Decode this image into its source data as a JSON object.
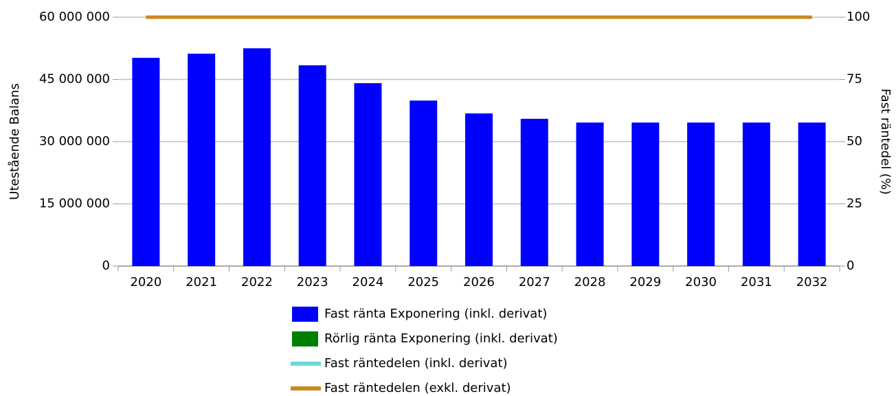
{
  "chart_data": {
    "type": "bar",
    "categories": [
      "2020",
      "2021",
      "2022",
      "2023",
      "2024",
      "2025",
      "2026",
      "2027",
      "2028",
      "2029",
      "2030",
      "2031",
      "2032"
    ],
    "y_label": "Utestående Balans",
    "y2_label": "Fast räntedel (%)",
    "ylim": [
      0,
      60000000
    ],
    "yticks": [
      {
        "value": 0,
        "label": "0"
      },
      {
        "value": 15000000,
        "label": "15 000 000"
      },
      {
        "value": 30000000,
        "label": "30 000 000"
      },
      {
        "value": 45000000,
        "label": "45 000 000"
      },
      {
        "value": 60000000,
        "label": "60 000 000"
      }
    ],
    "y2lim": [
      0,
      100
    ],
    "y2ticks": [
      0,
      25,
      50,
      75,
      100
    ],
    "grid": true,
    "series": [
      {
        "name": "Fast ränta Exponering (inkl. derivat)",
        "color": "#0000ff",
        "kind": "bar",
        "values": [
          50200000,
          51200000,
          52500000,
          48400000,
          44100000,
          39900000,
          36800000,
          35500000,
          34600000,
          34600000,
          34600000,
          34600000,
          34600000
        ]
      },
      {
        "name": "Rörlig ränta Exponering (inkl. derivat)",
        "color": "#008000",
        "kind": "bar",
        "values": [
          0,
          0,
          0,
          0,
          0,
          0,
          0,
          0,
          0,
          0,
          0,
          0,
          0
        ]
      },
      {
        "name": "Fast räntedelen (inkl. derivat)",
        "color": "#6ed8d8",
        "kind": "line",
        "axis": "y2",
        "values": [
          100,
          100,
          100,
          100,
          100,
          100,
          100,
          100,
          100,
          100,
          100,
          100,
          100
        ]
      },
      {
        "name": "Fast räntedelen (exkl. derivat)",
        "color": "#c8891e",
        "kind": "line",
        "axis": "y2",
        "values": [
          100,
          100,
          100,
          100,
          100,
          100,
          100,
          100,
          100,
          100,
          100,
          100,
          100
        ]
      }
    ]
  }
}
